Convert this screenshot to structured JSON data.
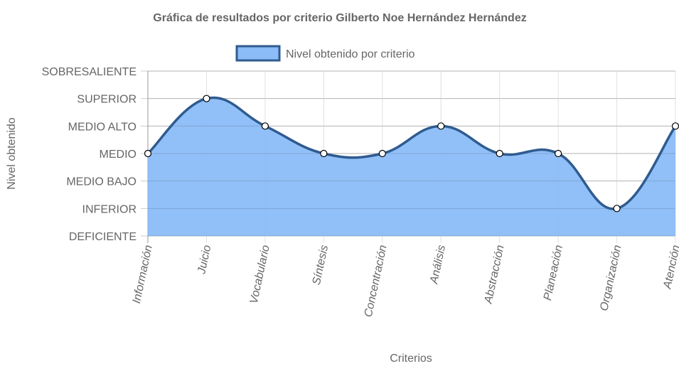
{
  "chart_data": {
    "type": "area",
    "title": "Gráfica de resultados por criterio Gilberto Noe Hernández Hernández",
    "xlabel": "Criterios",
    "ylabel": "Nivel obtenido",
    "categories": [
      "Información",
      "Juicio",
      "Vocabulario",
      "Síntesis",
      "Concentración",
      "Análisis",
      "Abstracción",
      "Planeación",
      "Organización",
      "Atención"
    ],
    "y_levels": [
      "DEFICIENTE",
      "INFERIOR",
      "MEDIO BAJO",
      "MEDIO",
      "MEDIO ALTO",
      "SUPERIOR",
      "SOBRESALIENTE"
    ],
    "ylim": [
      0,
      6
    ],
    "grid": true,
    "legend_position": "top",
    "series": [
      {
        "name": "Nivel obtenido por criterio",
        "values": [
          3,
          5,
          4,
          3,
          3,
          4,
          3,
          3,
          1,
          4
        ],
        "line_color": "#2f5b8f",
        "fill_color": "#8bbcf7"
      }
    ]
  }
}
